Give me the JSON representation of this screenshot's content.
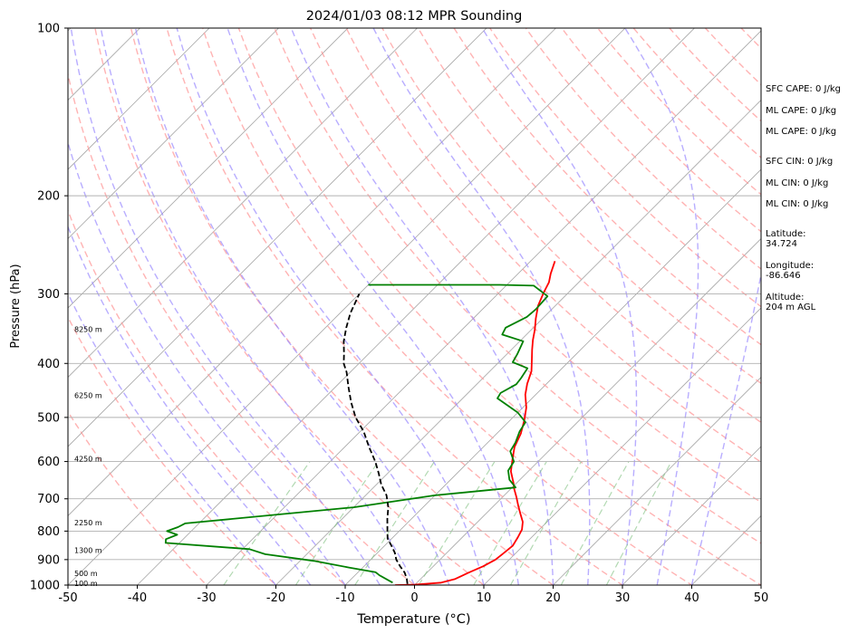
{
  "chart_data": {
    "type": "line",
    "title": "2024/01/03 08:12 MPR Sounding",
    "xlabel": "Temperature (°C)",
    "ylabel": "Pressure (hPa)",
    "xlim": [
      -50,
      50
    ],
    "ylim": [
      1000,
      100
    ],
    "y_scale": "log",
    "x_ticks": [
      -50,
      -40,
      -30,
      -20,
      -10,
      0,
      10,
      20,
      30,
      40,
      50
    ],
    "y_ticks": [
      100,
      200,
      300,
      400,
      500,
      600,
      700,
      800,
      900,
      1000
    ],
    "grid": "horizontal at pressure ticks",
    "series": [
      {
        "name": "Temperature",
        "color": "#ff0000",
        "points": [
          [
            -2.8,
            1000
          ],
          [
            0.0,
            998
          ],
          [
            3.5,
            990
          ],
          [
            5.0,
            975
          ],
          [
            6.0,
            950
          ],
          [
            7.2,
            925
          ],
          [
            8.0,
            900
          ],
          [
            8.2,
            880
          ],
          [
            8.5,
            850
          ],
          [
            8.0,
            820
          ],
          [
            7.5,
            795
          ],
          [
            6.5,
            770
          ],
          [
            5.0,
            745
          ],
          [
            3.5,
            720
          ],
          [
            2.0,
            695
          ],
          [
            0.5,
            672
          ],
          [
            -0.5,
            655
          ],
          [
            -2.5,
            625
          ],
          [
            -4.0,
            595
          ],
          [
            -5.5,
            565
          ],
          [
            -6.5,
            535
          ],
          [
            -8.0,
            505
          ],
          [
            -9.5,
            480
          ],
          [
            -11.5,
            455
          ],
          [
            -12.8,
            435
          ],
          [
            -14.0,
            413
          ],
          [
            -15.5,
            395
          ],
          [
            -17.0,
            378
          ],
          [
            -18.3,
            363
          ],
          [
            -19.5,
            348
          ],
          [
            -21.0,
            332
          ],
          [
            -22.5,
            315
          ],
          [
            -23.6,
            298
          ],
          [
            -24.3,
            286
          ],
          [
            -25.3,
            276
          ],
          [
            -26.5,
            262
          ]
        ]
      },
      {
        "name": "Dewpoint",
        "color": "#008000",
        "points": [
          [
            -3.5,
            990
          ],
          [
            -6.5,
            960
          ],
          [
            -7.5,
            948
          ],
          [
            -12.0,
            930
          ],
          [
            -18.0,
            905
          ],
          [
            -26.0,
            880
          ],
          [
            -29.0,
            862
          ],
          [
            -42.0,
            840
          ],
          [
            -42.5,
            827
          ],
          [
            -41.5,
            812
          ],
          [
            -43.5,
            800
          ],
          [
            -42.5,
            787
          ],
          [
            -42.0,
            775
          ],
          [
            -20.0,
            725
          ],
          [
            -10.0,
            690
          ],
          [
            0.5,
            668
          ],
          [
            -1.5,
            647
          ],
          [
            -3.0,
            623
          ],
          [
            -3.5,
            600
          ],
          [
            -5.5,
            575
          ],
          [
            -6.0,
            555
          ],
          [
            -7.0,
            530
          ],
          [
            -7.5,
            510
          ],
          [
            -10.0,
            490
          ],
          [
            -15.0,
            462
          ],
          [
            -15.3,
            452
          ],
          [
            -14.3,
            436
          ],
          [
            -14.5,
            425
          ],
          [
            -15.0,
            408
          ],
          [
            -18.0,
            398
          ],
          [
            -18.5,
            385
          ],
          [
            -19.5,
            365
          ],
          [
            -23.5,
            355
          ],
          [
            -24.0,
            345
          ],
          [
            -22.5,
            330
          ],
          [
            -22.3,
            320
          ],
          [
            -22.5,
            303
          ],
          [
            -26.0,
            290
          ],
          [
            -31.0,
            289
          ],
          [
            -50.0,
            289
          ]
        ]
      },
      {
        "name": "Parcel",
        "color": "#000000",
        "dashed": true,
        "points": [
          [
            -1.2,
            995
          ],
          [
            -2.0,
            975
          ],
          [
            -3.2,
            950
          ],
          [
            -4.8,
            925
          ],
          [
            -6.3,
            900
          ],
          [
            -7.5,
            875
          ],
          [
            -9.0,
            850
          ],
          [
            -10.6,
            825
          ],
          [
            -11.7,
            800
          ],
          [
            -13.5,
            760
          ],
          [
            -15.0,
            725
          ],
          [
            -17.0,
            690
          ],
          [
            -19.3,
            660
          ],
          [
            -21.3,
            630
          ],
          [
            -23.5,
            600
          ],
          [
            -26.5,
            565
          ],
          [
            -29.5,
            530
          ],
          [
            -32.7,
            500
          ],
          [
            -35.5,
            470
          ],
          [
            -38.2,
            440
          ],
          [
            -40.5,
            415
          ],
          [
            -42.2,
            400
          ],
          [
            -43.5,
            385
          ],
          [
            -45.4,
            365
          ],
          [
            -47.0,
            345
          ],
          [
            -48.5,
            325
          ],
          [
            -50.0,
            300
          ]
        ]
      }
    ],
    "height_labels": [
      {
        "text": "100 m",
        "p": 992
      },
      {
        "text": "500 m",
        "p": 952
      },
      {
        "text": "1300 m",
        "p": 865
      },
      {
        "text": "2250 m",
        "p": 772
      },
      {
        "text": "4250 m",
        "p": 593
      },
      {
        "text": "6250 m",
        "p": 456
      },
      {
        "text": "8250 m",
        "p": 347
      }
    ],
    "background": {
      "isotherm_color": "#a8a8a8",
      "dry_adiabat_color": "#ff9a9a",
      "moist_adiabat_color": "#9a8aff",
      "mixing_ratio_color": "#7fbf7f"
    }
  },
  "side_panel": [
    "SFC CAPE: 0 J/kg",
    "ML CAPE: 0 J/kg",
    "ML CAPE: 0 J/kg",
    "SFC CIN: 0 J/kg",
    "ML CIN: 0 J/kg",
    "ML CIN: 0 J/kg",
    "Latitude:\n34.724",
    "Longitude:\n-86.646",
    "Altitude:\n204 m AGL"
  ]
}
